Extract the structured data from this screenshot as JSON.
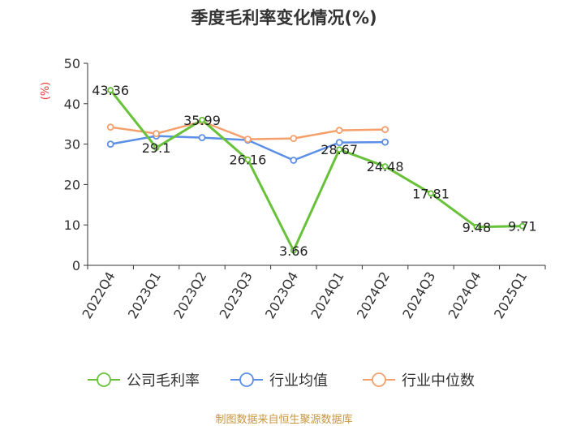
{
  "chart_data": {
    "type": "line",
    "title": "季度毛利率变化情况(%)",
    "ylabel": "(%)",
    "ylim": [
      0,
      50
    ],
    "yticks": [
      0,
      10,
      20,
      30,
      40,
      50
    ],
    "categories": [
      "2022Q4",
      "2023Q1",
      "2023Q2",
      "2023Q3",
      "2023Q4",
      "2024Q1",
      "2024Q2",
      "2024Q3",
      "2024Q4",
      "2025Q1"
    ],
    "series": [
      {
        "name": "公司毛利率",
        "color": "#67c23a",
        "values": [
          43.36,
          29.1,
          35.99,
          26.16,
          3.66,
          28.67,
          24.48,
          17.81,
          9.48,
          9.71
        ],
        "labels": [
          "43.36",
          "29.1",
          "35.99",
          "26.16",
          "3.66",
          "28.67",
          "24.48",
          "17.81",
          "9.48",
          "9.71"
        ]
      },
      {
        "name": "行业均值",
        "color": "#5b8ee6",
        "values": [
          30.0,
          32.0,
          31.6,
          31.0,
          26.0,
          30.4,
          30.5,
          null,
          null,
          null
        ]
      },
      {
        "name": "行业中位数",
        "color": "#f5a06c",
        "values": [
          34.2,
          32.6,
          35.6,
          31.2,
          31.4,
          33.4,
          33.6,
          null,
          null,
          null
        ]
      }
    ],
    "legend_position": "bottom",
    "grid": false,
    "source": "制图数据来自恒生聚源数据库"
  }
}
